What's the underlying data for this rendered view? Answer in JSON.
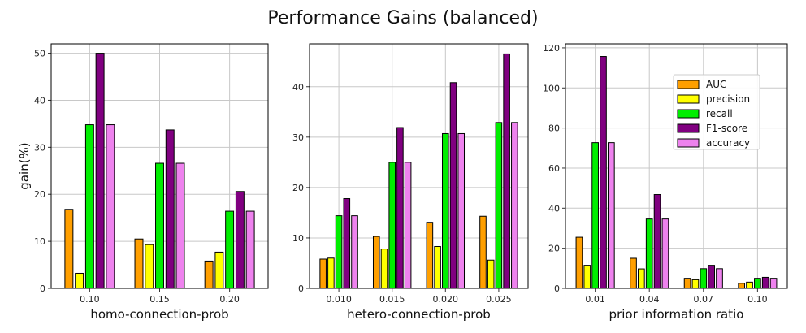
{
  "figure_title": "Performance Gains (balanced)",
  "series_colors": {
    "AUC": "#ff9f00",
    "precision": "#ffff00",
    "recall": "#00ee00",
    "F1-score": "#800080",
    "accuracy": "#ee82ee"
  },
  "chart_data": [
    {
      "type": "bar",
      "title": "",
      "xlabel": "homo-connection-prob",
      "ylabel": "gain(%)",
      "categories": [
        "0.10",
        "0.15",
        "0.20"
      ],
      "ylim": [
        0,
        52
      ],
      "yticks": [
        0,
        10,
        20,
        30,
        40,
        50
      ],
      "grid": true,
      "legend": "none",
      "series": [
        {
          "name": "AUC",
          "values": [
            16.8,
            10.5,
            5.8
          ]
        },
        {
          "name": "precision",
          "values": [
            3.2,
            9.3,
            7.7
          ]
        },
        {
          "name": "recall",
          "values": [
            34.8,
            26.6,
            16.4
          ]
        },
        {
          "name": "F1-score",
          "values": [
            50.0,
            33.7,
            20.6
          ]
        },
        {
          "name": "accuracy",
          "values": [
            34.8,
            26.6,
            16.4
          ]
        }
      ]
    },
    {
      "type": "bar",
      "title": "",
      "xlabel": "hetero-connection-prob",
      "ylabel": "",
      "categories": [
        "0.010",
        "0.015",
        "0.020",
        "0.025"
      ],
      "ylim": [
        0,
        48.5
      ],
      "yticks": [
        0,
        10,
        20,
        30,
        40
      ],
      "grid": true,
      "legend": "none",
      "series": [
        {
          "name": "AUC",
          "values": [
            5.8,
            10.3,
            13.1,
            14.3
          ]
        },
        {
          "name": "precision",
          "values": [
            6.0,
            7.8,
            8.3,
            5.6
          ]
        },
        {
          "name": "recall",
          "values": [
            14.4,
            25.0,
            30.7,
            32.9
          ]
        },
        {
          "name": "F1-score",
          "values": [
            17.8,
            31.9,
            40.8,
            46.5
          ]
        },
        {
          "name": "accuracy",
          "values": [
            14.4,
            25.0,
            30.7,
            32.9
          ]
        }
      ]
    },
    {
      "type": "bar",
      "title": "",
      "xlabel": "prior information ratio",
      "ylabel": "",
      "categories": [
        "0.01",
        "0.04",
        "0.07",
        "0.10"
      ],
      "ylim": [
        0,
        122
      ],
      "yticks": [
        0,
        20,
        40,
        60,
        80,
        100,
        120
      ],
      "grid": true,
      "legend": "top-right",
      "series": [
        {
          "name": "AUC",
          "values": [
            25.5,
            15.0,
            5.0,
            2.5
          ]
        },
        {
          "name": "precision",
          "values": [
            11.5,
            9.7,
            4.3,
            3.1
          ]
        },
        {
          "name": "recall",
          "values": [
            72.7,
            34.6,
            9.8,
            5.0
          ]
        },
        {
          "name": "F1-score",
          "values": [
            115.7,
            46.8,
            11.5,
            5.5
          ]
        },
        {
          "name": "accuracy",
          "values": [
            72.7,
            34.6,
            9.8,
            5.0
          ]
        }
      ]
    }
  ]
}
